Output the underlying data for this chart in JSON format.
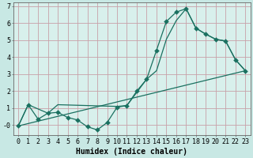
{
  "xlabel": "Humidex (Indice chaleur)",
  "bg_color": "#c8e8e4",
  "plot_bg_color": "#d8f0ec",
  "grid_color": "#c8a0a8",
  "line_color": "#1a7060",
  "xlim": [
    -0.5,
    23.5
  ],
  "ylim": [
    -0.6,
    7.2
  ],
  "yticks": [
    0,
    1,
    2,
    3,
    4,
    5,
    6,
    7
  ],
  "ytick_labels": [
    "-0",
    "1",
    "2",
    "3",
    "4",
    "5",
    "6",
    "7"
  ],
  "xticks": [
    0,
    1,
    2,
    3,
    4,
    5,
    6,
    7,
    8,
    9,
    10,
    11,
    12,
    13,
    14,
    15,
    16,
    17,
    18,
    19,
    20,
    21,
    22,
    23
  ],
  "line1_x": [
    0,
    1,
    2,
    3,
    4,
    5,
    6,
    7,
    8,
    9,
    10,
    11,
    12,
    13,
    14,
    15,
    16,
    17,
    18,
    19,
    20,
    21,
    22,
    23
  ],
  "line1_y": [
    -0.05,
    1.2,
    0.35,
    0.7,
    0.75,
    0.45,
    0.3,
    -0.1,
    -0.28,
    0.15,
    1.05,
    1.15,
    2.0,
    2.7,
    4.4,
    6.1,
    6.65,
    6.85,
    5.7,
    5.35,
    5.05,
    4.95,
    3.85,
    3.2
  ],
  "line2_x": [
    0,
    1,
    3,
    4,
    10,
    11,
    13,
    14,
    15,
    16,
    17,
    18,
    19,
    20,
    21,
    22,
    23
  ],
  "line2_y": [
    -0.05,
    1.2,
    0.7,
    1.2,
    1.1,
    1.15,
    2.7,
    3.2,
    5.05,
    6.15,
    6.85,
    5.7,
    5.35,
    5.05,
    4.95,
    3.85,
    3.2
  ],
  "line3_x": [
    0,
    23
  ],
  "line3_y": [
    -0.05,
    3.2
  ],
  "marker_size": 3.0,
  "linewidth": 0.9,
  "tick_fontsize": 6.0,
  "xlabel_fontsize": 7.0,
  "font_family": "monospace"
}
